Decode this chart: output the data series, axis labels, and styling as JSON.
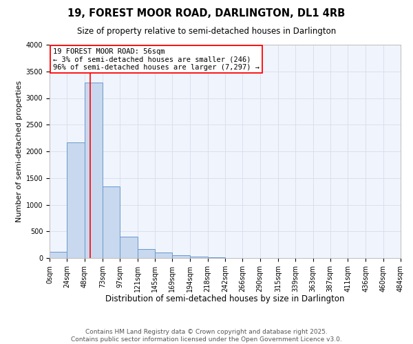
{
  "title": "19, FOREST MOOR ROAD, DARLINGTON, DL1 4RB",
  "subtitle": "Size of property relative to semi-detached houses in Darlington",
  "xlabel": "Distribution of semi-detached houses by size in Darlington",
  "ylabel": "Number of semi-detached properties",
  "bin_edges": [
    0,
    24,
    48,
    73,
    97,
    121,
    145,
    169,
    194,
    218,
    242,
    266,
    290,
    315,
    339,
    363,
    387,
    411,
    436,
    460,
    484
  ],
  "bar_heights": [
    110,
    2170,
    3290,
    1340,
    400,
    170,
    100,
    55,
    20,
    10,
    5,
    0,
    0,
    0,
    0,
    0,
    0,
    0,
    0,
    0
  ],
  "bar_facecolor": "#c8d8ee",
  "bar_edgecolor": "#6898cc",
  "bar_linewidth": 0.7,
  "vline_x": 56,
  "vline_color": "red",
  "vline_linewidth": 1.2,
  "ylim": [
    0,
    4000
  ],
  "yticks": [
    0,
    500,
    1000,
    1500,
    2000,
    2500,
    3000,
    3500,
    4000
  ],
  "xlim": [
    0,
    484
  ],
  "xtick_labels": [
    "0sqm",
    "24sqm",
    "48sqm",
    "73sqm",
    "97sqm",
    "121sqm",
    "145sqm",
    "169sqm",
    "194sqm",
    "218sqm",
    "242sqm",
    "266sqm",
    "290sqm",
    "315sqm",
    "339sqm",
    "363sqm",
    "387sqm",
    "411sqm",
    "436sqm",
    "460sqm",
    "484sqm"
  ],
  "xtick_positions": [
    0,
    24,
    48,
    73,
    97,
    121,
    145,
    169,
    194,
    218,
    242,
    266,
    290,
    315,
    339,
    363,
    387,
    411,
    436,
    460,
    484
  ],
  "annotation_title": "19 FOREST MOOR ROAD: 56sqm",
  "annotation_line1": "← 3% of semi-detached houses are smaller (246)",
  "annotation_line2": "96% of semi-detached houses are larger (7,297) →",
  "annotation_box_edgecolor": "red",
  "annotation_box_facecolor": "white",
  "grid_color": "#d8dde8",
  "plot_bg_color": "#f0f4fc",
  "fig_bg_color": "#ffffff",
  "footer_line1": "Contains HM Land Registry data © Crown copyright and database right 2025.",
  "footer_line2": "Contains public sector information licensed under the Open Government Licence v3.0.",
  "title_fontsize": 10.5,
  "subtitle_fontsize": 8.5,
  "xlabel_fontsize": 8.5,
  "ylabel_fontsize": 8,
  "tick_fontsize": 7,
  "annotation_fontsize": 7.5,
  "footer_fontsize": 6.5
}
